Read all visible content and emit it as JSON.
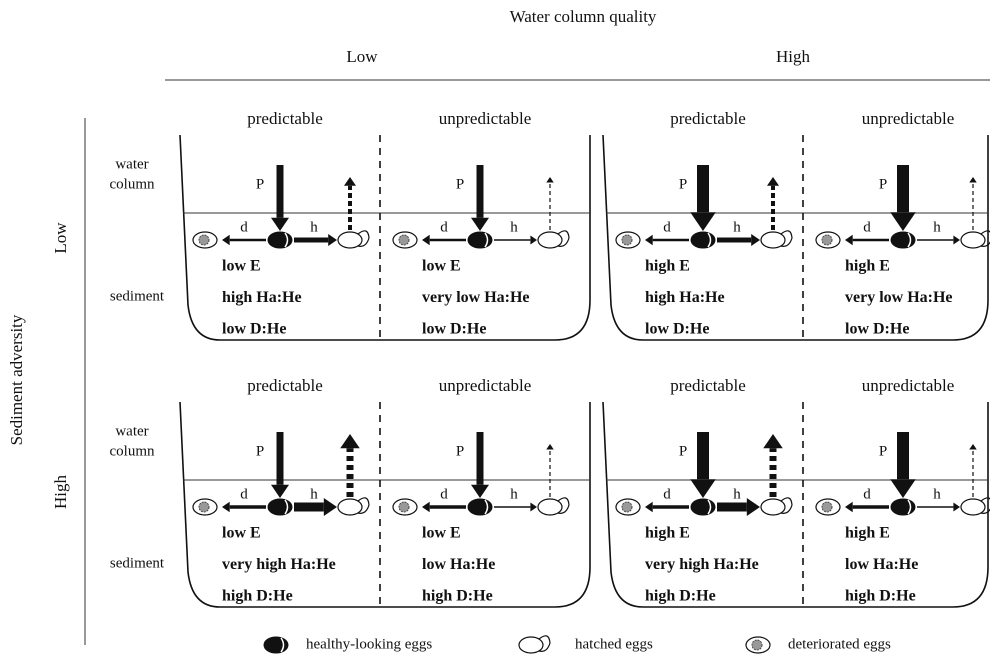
{
  "header": {
    "title": "Water column quality",
    "columns": [
      "Low",
      "High"
    ]
  },
  "row_axis": {
    "title": "Sediment adversity",
    "rows": [
      {
        "label": "Low",
        "water_label": [
          "water",
          "column"
        ],
        "sediment_label": "sediment"
      },
      {
        "label": "High",
        "water_label": [
          "water",
          "column"
        ],
        "sediment_label": "sediment"
      }
    ]
  },
  "panels": [
    [
      {
        "sections": [
          {
            "heading": "predictable",
            "p": "P",
            "d": "d",
            "h": "h",
            "lines": [
              "low E",
              "high Ha:He",
              "low D:He"
            ]
          },
          {
            "heading": "unpredictable",
            "p": "P",
            "d": "d",
            "h": "h",
            "lines": [
              "low E",
              "very low Ha:He",
              "low D:He"
            ]
          }
        ]
      },
      {
        "sections": [
          {
            "heading": "predictable",
            "p": "P",
            "d": "d",
            "h": "h",
            "lines": [
              "high E",
              "high Ha:He",
              "low D:He"
            ]
          },
          {
            "heading": "unpredictable",
            "p": "P",
            "d": "d",
            "h": "h",
            "lines": [
              "high E",
              "very low Ha:He",
              "low D:He"
            ]
          }
        ]
      }
    ],
    [
      {
        "sections": [
          {
            "heading": "predictable",
            "p": "P",
            "d": "d",
            "h": "h",
            "lines": [
              "low E",
              "very high Ha:He",
              "high D:He"
            ]
          },
          {
            "heading": "unpredictable",
            "p": "P",
            "d": "d",
            "h": "h",
            "lines": [
              "low E",
              "low Ha:He",
              "high D:He"
            ]
          }
        ]
      },
      {
        "sections": [
          {
            "heading": "predictable",
            "p": "P",
            "d": "d",
            "h": "h",
            "lines": [
              "high E",
              "very high Ha:He",
              "high D:He"
            ]
          },
          {
            "heading": "unpredictable",
            "p": "P",
            "d": "d",
            "h": "h",
            "lines": [
              "high E",
              "low Ha:He",
              "high D:He"
            ]
          }
        ]
      }
    ]
  ],
  "legend": [
    "healthy-looking eggs",
    "hatched eggs",
    "deteriorated eggs"
  ]
}
